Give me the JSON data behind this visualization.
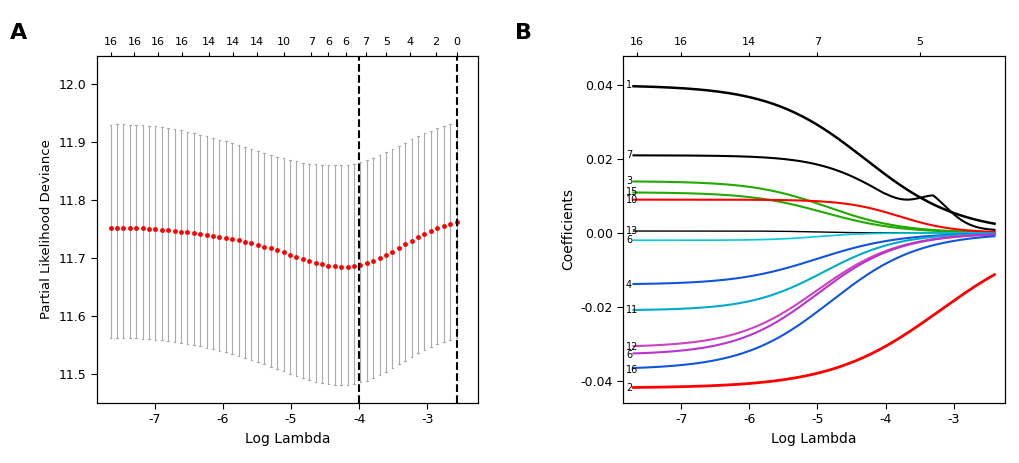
{
  "panel_A": {
    "xlabel": "Log Lambda",
    "ylabel": "Partial Likelihood Deviance",
    "dashed_line1_x": -4.0,
    "dashed_line2_x": -2.57,
    "xlim": [
      -7.85,
      -2.25
    ],
    "ylim": [
      11.45,
      12.05
    ],
    "yticks": [
      11.5,
      11.6,
      11.7,
      11.8,
      11.9,
      12.0
    ],
    "xticks": [
      -7,
      -6,
      -5,
      -4,
      -3
    ],
    "top_ticks_x": [
      -7.65,
      -7.3,
      -6.95,
      -6.6,
      -6.2,
      -5.85,
      -5.5,
      -5.1,
      -4.7,
      -4.45,
      -4.2,
      -3.9,
      -3.6,
      -3.25,
      -2.87,
      -2.57
    ],
    "top_ticks_labels": [
      "16",
      "16",
      "16",
      "16",
      "14",
      "14",
      "14",
      "10",
      "7",
      "6",
      "6",
      "7",
      "5",
      "4",
      "2",
      "0"
    ]
  },
  "panel_B": {
    "xlabel": "Log Lambda",
    "ylabel": "Coefficients",
    "xlim": [
      -7.85,
      -2.25
    ],
    "ylim": [
      -0.046,
      0.048
    ],
    "yticks": [
      -0.04,
      -0.02,
      0.0,
      0.02,
      0.04
    ],
    "xticks": [
      -7,
      -6,
      -5,
      -4,
      -3
    ],
    "top_ticks_x": [
      -7.65,
      -7.0,
      -6.0,
      -5.0,
      -3.5
    ],
    "top_ticks_labels": [
      "16",
      "16",
      "14",
      "7",
      "5"
    ],
    "labels_left": [
      [
        0.04,
        "1"
      ],
      [
        0.021,
        "7"
      ],
      [
        0.014,
        "3"
      ],
      [
        0.011,
        "15"
      ],
      [
        0.009,
        "10"
      ],
      [
        0.0005,
        "13"
      ],
      [
        -0.002,
        "6"
      ],
      [
        -0.014,
        "4"
      ],
      [
        -0.021,
        "11"
      ],
      [
        -0.031,
        "12"
      ],
      [
        -0.033,
        "6"
      ],
      [
        -0.037,
        "16"
      ],
      [
        -0.042,
        "2"
      ]
    ]
  }
}
